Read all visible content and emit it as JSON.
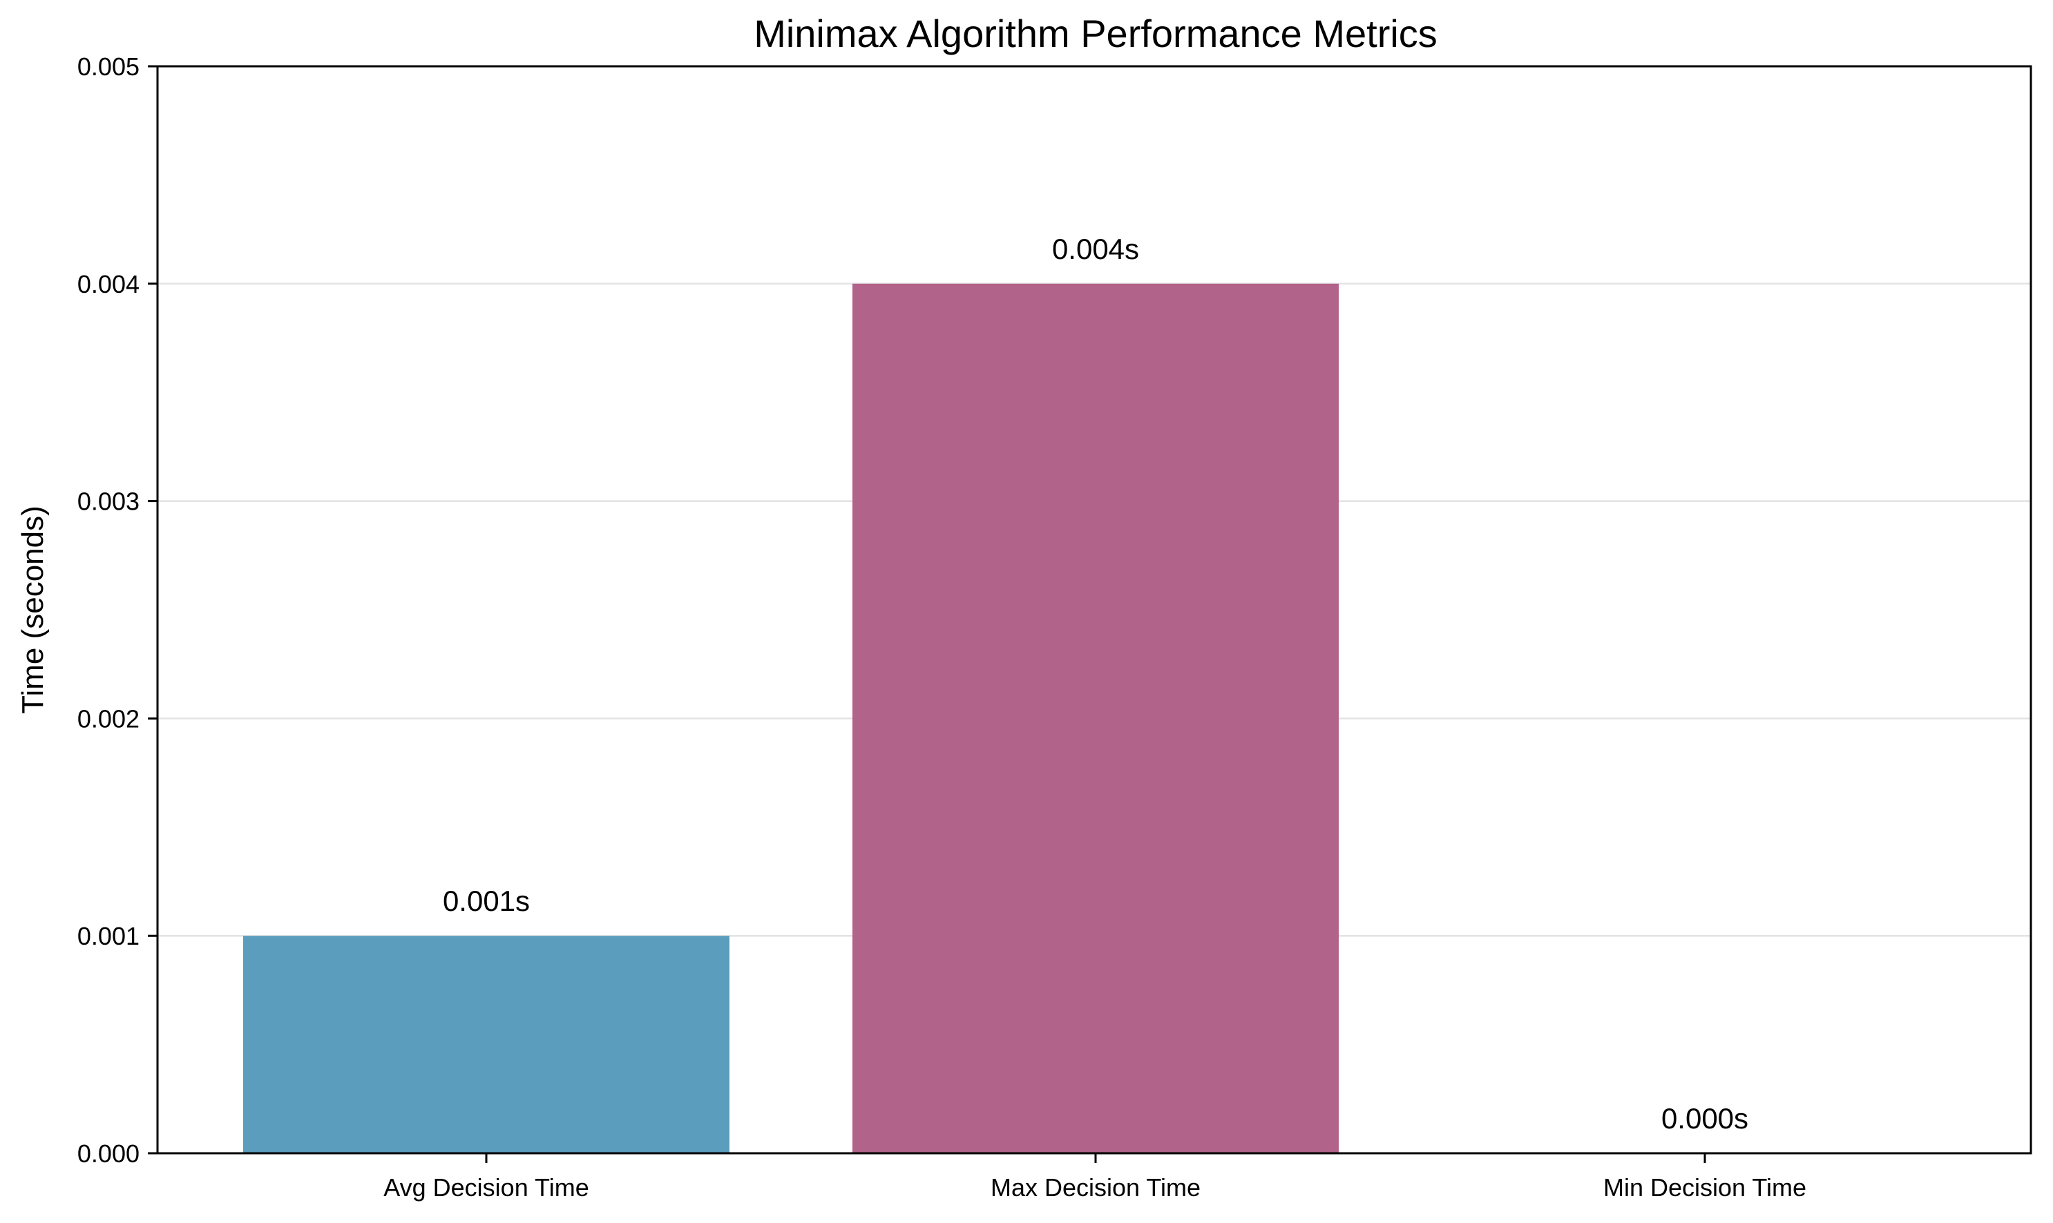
{
  "chart_data": {
    "type": "bar",
    "title": "Minimax Algorithm Performance Metrics",
    "xlabel": "",
    "ylabel": "Time (seconds)",
    "categories": [
      "Avg Decision Time",
      "Max Decision Time",
      "Min Decision Time"
    ],
    "values": [
      0.001,
      0.004,
      0.0
    ],
    "value_labels": [
      "0.001s",
      "0.004s",
      "0.000s"
    ],
    "colors": [
      "#5a9dbc",
      "#b2638a",
      "#c08a4f"
    ],
    "ylim": [
      0,
      0.005
    ],
    "yticks": [
      0.0,
      0.001,
      0.002,
      0.003,
      0.004,
      0.005
    ],
    "ytick_labels": [
      "0.000",
      "0.001",
      "0.002",
      "0.003",
      "0.004",
      "0.005"
    ],
    "grid": "y-major",
    "legend": "none"
  }
}
